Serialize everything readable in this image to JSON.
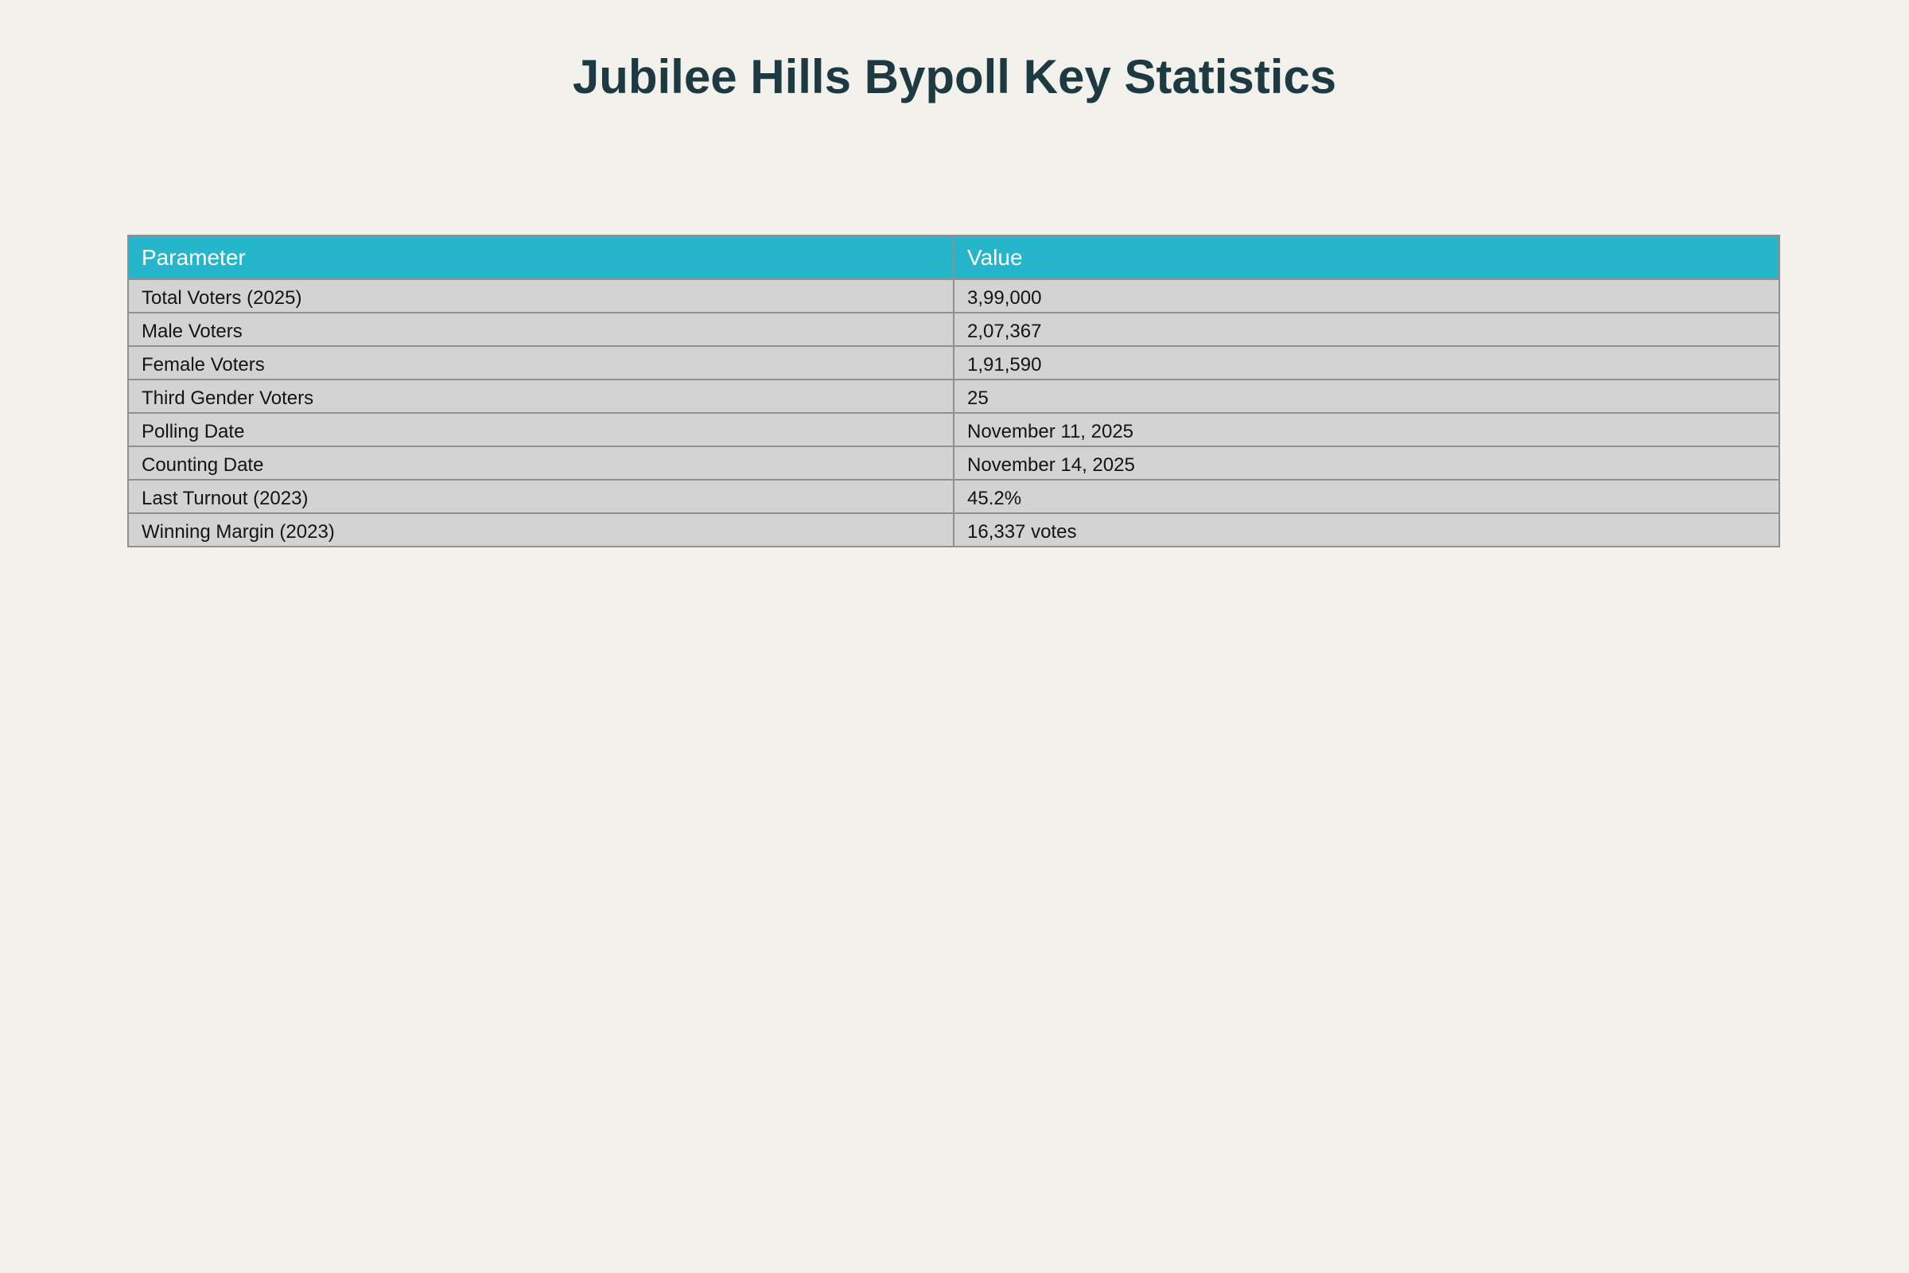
{
  "page": {
    "title": "Jubilee Hills Bypoll Key Statistics",
    "background_color": "#f2f1ec",
    "title_color": "#1d3a42"
  },
  "table": {
    "header": {
      "parameter": "Parameter",
      "value": "Value"
    },
    "header_bg_color": "#25b6cb",
    "header_text_color": "#ffffff",
    "row_bg_color": "#d3d3d3",
    "border_color": "#909090",
    "rows": [
      {
        "parameter": "Total Voters (2025)",
        "value": "3,99,000"
      },
      {
        "parameter": "Male Voters",
        "value": "2,07,367"
      },
      {
        "parameter": "Female Voters",
        "value": "1,91,590"
      },
      {
        "parameter": "Third Gender Voters",
        "value": "25"
      },
      {
        "parameter": "Polling Date",
        "value": "November 11, 2025"
      },
      {
        "parameter": "Counting Date",
        "value": "November 14, 2025"
      },
      {
        "parameter": "Last Turnout (2023)",
        "value": "45.2%"
      },
      {
        "parameter": "Winning Margin (2023)",
        "value": "16,337 votes"
      }
    ]
  },
  "chart_data": {
    "type": "table",
    "title": "Jubilee Hills Bypoll Key Statistics",
    "columns": [
      "Parameter",
      "Value"
    ],
    "rows": [
      [
        "Total Voters (2025)",
        "3,99,000"
      ],
      [
        "Male Voters",
        "2,07,367"
      ],
      [
        "Female Voters",
        "1,91,590"
      ],
      [
        "Third Gender Voters",
        "25"
      ],
      [
        "Polling Date",
        "November 11, 2025"
      ],
      [
        "Counting Date",
        "November 14, 2025"
      ],
      [
        "Last Turnout (2023)",
        "45.2%"
      ],
      [
        "Winning Margin (2023)",
        "16,337 votes"
      ]
    ],
    "numeric_facts": {
      "total_voters_2025": 399000,
      "male_voters": 207367,
      "female_voters": 191590,
      "third_gender_voters": 25,
      "last_turnout_2023_percent": 45.2,
      "winning_margin_2023_votes": 16337
    },
    "layout": {
      "header_position": "top",
      "column_split": "50/50",
      "grid": "full-borders"
    }
  }
}
